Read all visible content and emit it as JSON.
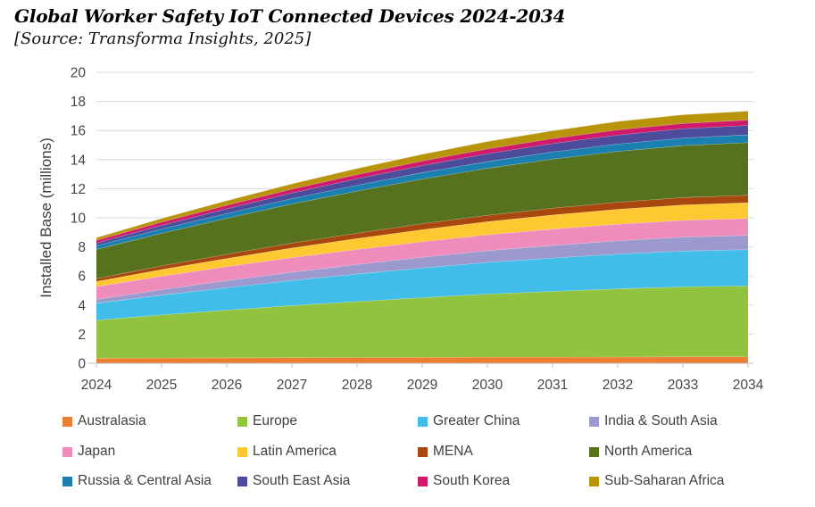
{
  "header": {
    "title": "Global Worker Safety IoT Connected Devices 2024-2034",
    "source_note": "[Source: Transforma Insights, 2025]"
  },
  "chart_data": {
    "type": "area",
    "stacked": true,
    "title": "Global Worker Safety IoT Connected Devices 2024-2034",
    "source": "Transforma Insights, 2025",
    "xlabel": "",
    "ylabel": "Installed Base (millions)",
    "ylim": [
      0,
      20
    ],
    "ytick_step": 2,
    "grid": true,
    "legend_position": "bottom",
    "background_color": "#FFFFFF",
    "gridline_color": "#D9D9D9",
    "axis_line_color": "#BFBFBF",
    "tick_label_color": "#474747",
    "categories": [
      2024,
      2025,
      2026,
      2027,
      2028,
      2029,
      2030,
      2031,
      2032,
      2033,
      2034
    ],
    "series": [
      {
        "name": "Australasia",
        "slug": "australasia",
        "color": "#ED7D31",
        "values": [
          0.35,
          0.37,
          0.38,
          0.39,
          0.4,
          0.42,
          0.43,
          0.43,
          0.44,
          0.45,
          0.45
        ]
      },
      {
        "name": "Europe",
        "slug": "europe",
        "color": "#92C33E",
        "values": [
          2.62,
          2.96,
          3.28,
          3.58,
          3.85,
          4.1,
          4.33,
          4.52,
          4.68,
          4.81,
          4.87
        ]
      },
      {
        "name": "Greater China",
        "slug": "greater-china",
        "color": "#40BEE9",
        "values": [
          1.16,
          1.36,
          1.55,
          1.73,
          1.89,
          2.04,
          2.18,
          2.29,
          2.39,
          2.46,
          2.5
        ]
      },
      {
        "name": "India & South Asia",
        "slug": "india-south-asia",
        "color": "#9B99CE",
        "values": [
          0.27,
          0.38,
          0.48,
          0.57,
          0.66,
          0.74,
          0.81,
          0.87,
          0.92,
          0.96,
          0.98
        ]
      },
      {
        "name": "Japan",
        "slug": "japan",
        "color": "#F08CBB",
        "values": [
          0.88,
          0.92,
          0.96,
          1.0,
          1.03,
          1.06,
          1.09,
          1.12,
          1.14,
          1.15,
          1.16
        ]
      },
      {
        "name": "Latin America",
        "slug": "latin-america",
        "color": "#FEC831",
        "values": [
          0.35,
          0.46,
          0.56,
          0.66,
          0.75,
          0.83,
          0.9,
          0.97,
          1.02,
          1.06,
          1.08
        ]
      },
      {
        "name": "MENA",
        "slug": "mena",
        "color": "#A8470E",
        "values": [
          0.2,
          0.25,
          0.29,
          0.34,
          0.37,
          0.41,
          0.44,
          0.47,
          0.49,
          0.51,
          0.52
        ]
      },
      {
        "name": "North America",
        "slug": "north-america",
        "color": "#56721F",
        "values": [
          2.0,
          2.24,
          2.47,
          2.69,
          2.89,
          3.07,
          3.23,
          3.37,
          3.49,
          3.57,
          3.62
        ]
      },
      {
        "name": "Russia & Central Asia",
        "slug": "russia-central-asia",
        "color": "#1B80AF",
        "values": [
          0.26,
          0.3,
          0.34,
          0.37,
          0.41,
          0.44,
          0.46,
          0.49,
          0.51,
          0.52,
          0.53
        ]
      },
      {
        "name": "South East Asia",
        "slug": "south-east-asia",
        "color": "#4C4B9C",
        "values": [
          0.18,
          0.25,
          0.32,
          0.38,
          0.44,
          0.49,
          0.54,
          0.58,
          0.61,
          0.64,
          0.65
        ]
      },
      {
        "name": "South Korea",
        "slug": "south-korea",
        "color": "#D01A6A",
        "values": [
          0.19,
          0.22,
          0.24,
          0.27,
          0.29,
          0.31,
          0.33,
          0.34,
          0.36,
          0.36,
          0.37
        ]
      },
      {
        "name": "Sub-Saharan Africa",
        "slug": "sub-saharan-africa",
        "color": "#B8940B",
        "values": [
          0.18,
          0.25,
          0.31,
          0.36,
          0.42,
          0.46,
          0.51,
          0.54,
          0.58,
          0.6,
          0.61
        ]
      }
    ]
  }
}
